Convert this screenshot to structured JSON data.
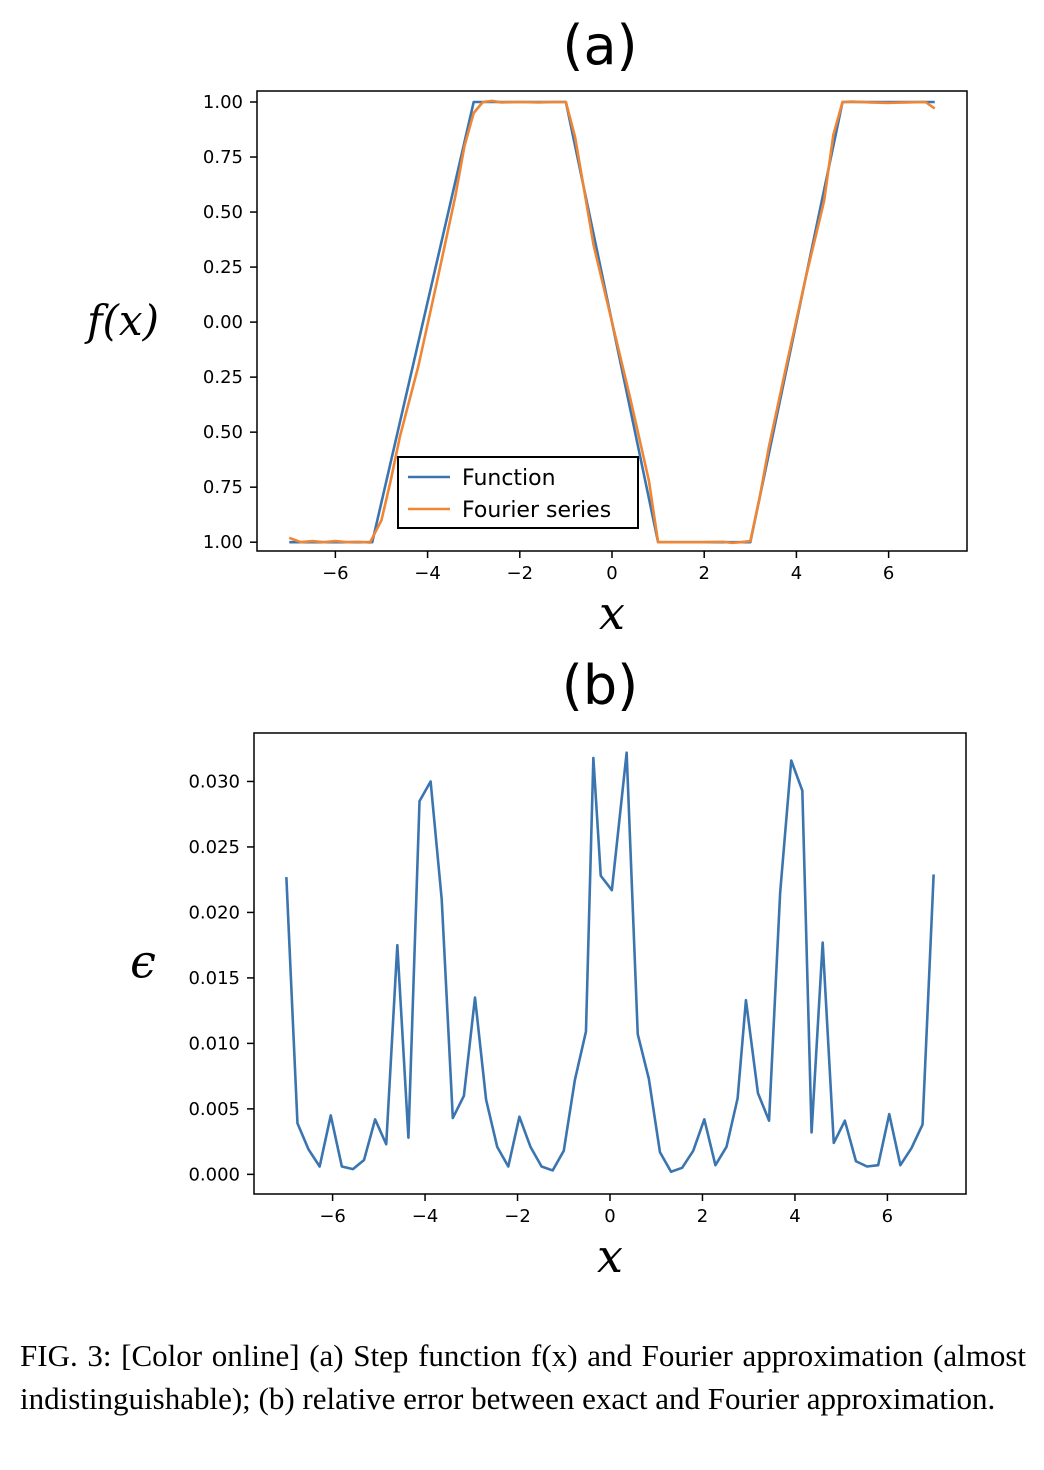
{
  "chart_data": [
    {
      "type": "line",
      "title": "(a)",
      "xlabel": "x",
      "ylabel": "f(x)",
      "xlim": [
        -7.7,
        7.7
      ],
      "ylim": [
        -1.04,
        1.05
      ],
      "xticks": [
        -6,
        -4,
        -2,
        0,
        2,
        4,
        6
      ],
      "xtick_labels": [
        "−6",
        "−4",
        "−2",
        "0",
        "2",
        "4",
        "6"
      ],
      "yticks": [
        1.0,
        0.75,
        0.5,
        0.25,
        0.0,
        -0.25,
        -0.5,
        -0.75,
        -1.0
      ],
      "ytick_labels": [
        "1.00",
        "0.75",
        "0.50",
        "0.25",
        "0.00",
        "0.25",
        "0.50",
        "0.75",
        "1.00"
      ],
      "legend_position": "lower-center",
      "grid": false,
      "series": [
        {
          "name": "Function",
          "color": "#3b75af",
          "x": [
            -7.0,
            -5.2,
            -3.0,
            -1.0,
            1.0,
            3.0,
            5.0,
            7.0
          ],
          "y": [
            -1.0,
            -1.0,
            1.0,
            1.0,
            -1.0,
            -1.0,
            1.0,
            1.0
          ]
        },
        {
          "name": "Fourier series",
          "color": "#ef8636",
          "x": [
            -7.0,
            -6.75,
            -6.5,
            -6.25,
            -6.0,
            -5.75,
            -5.5,
            -5.25,
            -5.0,
            -4.8,
            -4.6,
            -4.2,
            -3.8,
            -3.4,
            -3.2,
            -3.0,
            -2.8,
            -2.6,
            -2.4,
            -2.0,
            -1.6,
            -1.2,
            -1.0,
            -0.8,
            -0.4,
            0.0,
            0.4,
            0.8,
            1.0,
            1.2,
            1.6,
            2.0,
            2.4,
            2.6,
            2.8,
            3.0,
            3.2,
            3.4,
            3.8,
            4.2,
            4.6,
            4.8,
            5.0,
            5.2,
            5.6,
            6.0,
            6.4,
            6.8,
            7.0
          ],
          "y": [
            -0.98,
            -1.0,
            -0.995,
            -1.0,
            -0.995,
            -1.0,
            -0.998,
            -1.002,
            -0.9,
            -0.72,
            -0.52,
            -0.2,
            0.18,
            0.57,
            0.8,
            0.95,
            1.0,
            1.005,
            0.998,
            1.0,
            0.998,
            1.0,
            1.0,
            0.84,
            0.35,
            0.0,
            -0.35,
            -0.72,
            -1.0,
            -1.0,
            -1.0,
            -1.0,
            -0.998,
            -1.003,
            -1.0,
            -0.995,
            -0.8,
            -0.57,
            -0.18,
            0.2,
            0.55,
            0.85,
            1.0,
            1.002,
            0.998,
            0.996,
            0.998,
            1.0,
            0.97
          ]
        }
      ]
    },
    {
      "type": "line",
      "title": "(b)",
      "xlabel": "x",
      "ylabel": "ϵ",
      "xlim": [
        -7.7,
        7.7
      ],
      "ylim": [
        -0.0015,
        0.0337
      ],
      "xticks": [
        -6,
        -4,
        -2,
        0,
        2,
        4,
        6
      ],
      "xtick_labels": [
        "−6",
        "−4",
        "−2",
        "0",
        "2",
        "4",
        "6"
      ],
      "yticks": [
        0.0,
        0.005,
        0.01,
        0.015,
        0.02,
        0.025,
        0.03
      ],
      "ytick_labels": [
        "0.000",
        "0.005",
        "0.010",
        "0.015",
        "0.020",
        "0.025",
        "0.030"
      ],
      "grid": false,
      "series": [
        {
          "color": "#3b75af",
          "x": [
            -7.0,
            -6.76,
            -6.52,
            -6.28,
            -6.04,
            -5.8,
            -5.56,
            -5.32,
            -5.08,
            -4.84,
            -4.6,
            -4.36,
            -4.12,
            -3.88,
            -3.64,
            -3.4,
            -3.16,
            -2.92,
            -2.68,
            -2.44,
            -2.2,
            -1.96,
            -1.72,
            -1.48,
            -1.24,
            -1.0,
            -0.76,
            -0.52,
            -0.36,
            -0.2,
            0.04,
            0.36,
            0.6,
            0.84,
            1.08,
            1.32,
            1.56,
            1.8,
            2.04,
            2.28,
            2.52,
            2.76,
            2.94,
            3.2,
            3.44,
            3.68,
            3.92,
            4.16,
            4.36,
            4.6,
            4.84,
            5.08,
            5.32,
            5.56,
            5.8,
            6.04,
            6.28,
            6.52,
            6.76,
            7.0
          ],
          "y": [
            0.0227,
            0.0039,
            0.0019,
            0.0006,
            0.0045,
            0.0006,
            0.0004,
            0.0011,
            0.0042,
            0.0023,
            0.0175,
            0.0028,
            0.0285,
            0.03,
            0.021,
            0.0043,
            0.006,
            0.0135,
            0.0057,
            0.0021,
            0.0006,
            0.0044,
            0.0021,
            0.0006,
            0.0003,
            0.0018,
            0.0072,
            0.0109,
            0.0318,
            0.0228,
            0.0217,
            0.0322,
            0.0107,
            0.0073,
            0.0017,
            0.0002,
            0.0005,
            0.0018,
            0.0042,
            0.0007,
            0.0021,
            0.0058,
            0.0133,
            0.0062,
            0.0041,
            0.0215,
            0.0316,
            0.0293,
            0.0032,
            0.0177,
            0.0024,
            0.0041,
            0.001,
            0.0006,
            0.0007,
            0.0046,
            0.0007,
            0.002,
            0.0038,
            0.0229
          ]
        }
      ]
    }
  ],
  "caption": "FIG. 3: [Color online] (a) Step function f(x) and Fourier approximation (almost indistinguishable); (b) relative error between exact and Fourier approximation."
}
